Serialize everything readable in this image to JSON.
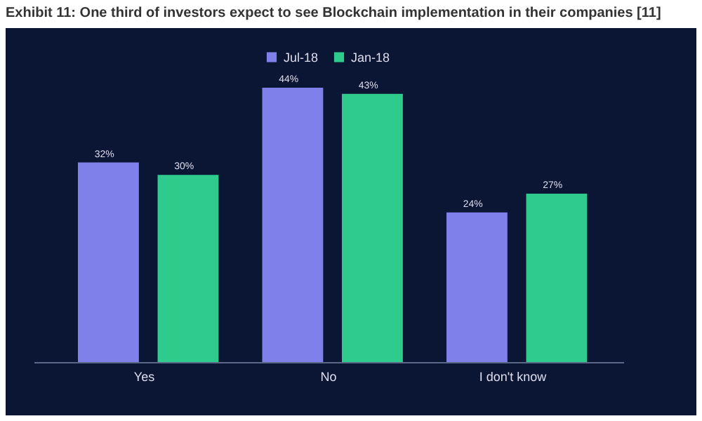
{
  "chart_data": {
    "type": "bar",
    "title": "Exhibit 11: One third of investors expect to see Blockchain implementation in their companies [11]",
    "categories": [
      "Yes",
      "No",
      "I don't know"
    ],
    "series": [
      {
        "name": "Jul-18",
        "color": "#8080ea",
        "values": [
          32,
          44,
          24
        ],
        "value_labels": [
          "32%",
          "44%",
          "24%"
        ]
      },
      {
        "name": "Jan-18",
        "color": "#2ecb8c",
        "values": [
          30,
          43,
          27
        ],
        "value_labels": [
          "30%",
          "43%",
          "27%"
        ]
      }
    ],
    "legend": "top"
  }
}
